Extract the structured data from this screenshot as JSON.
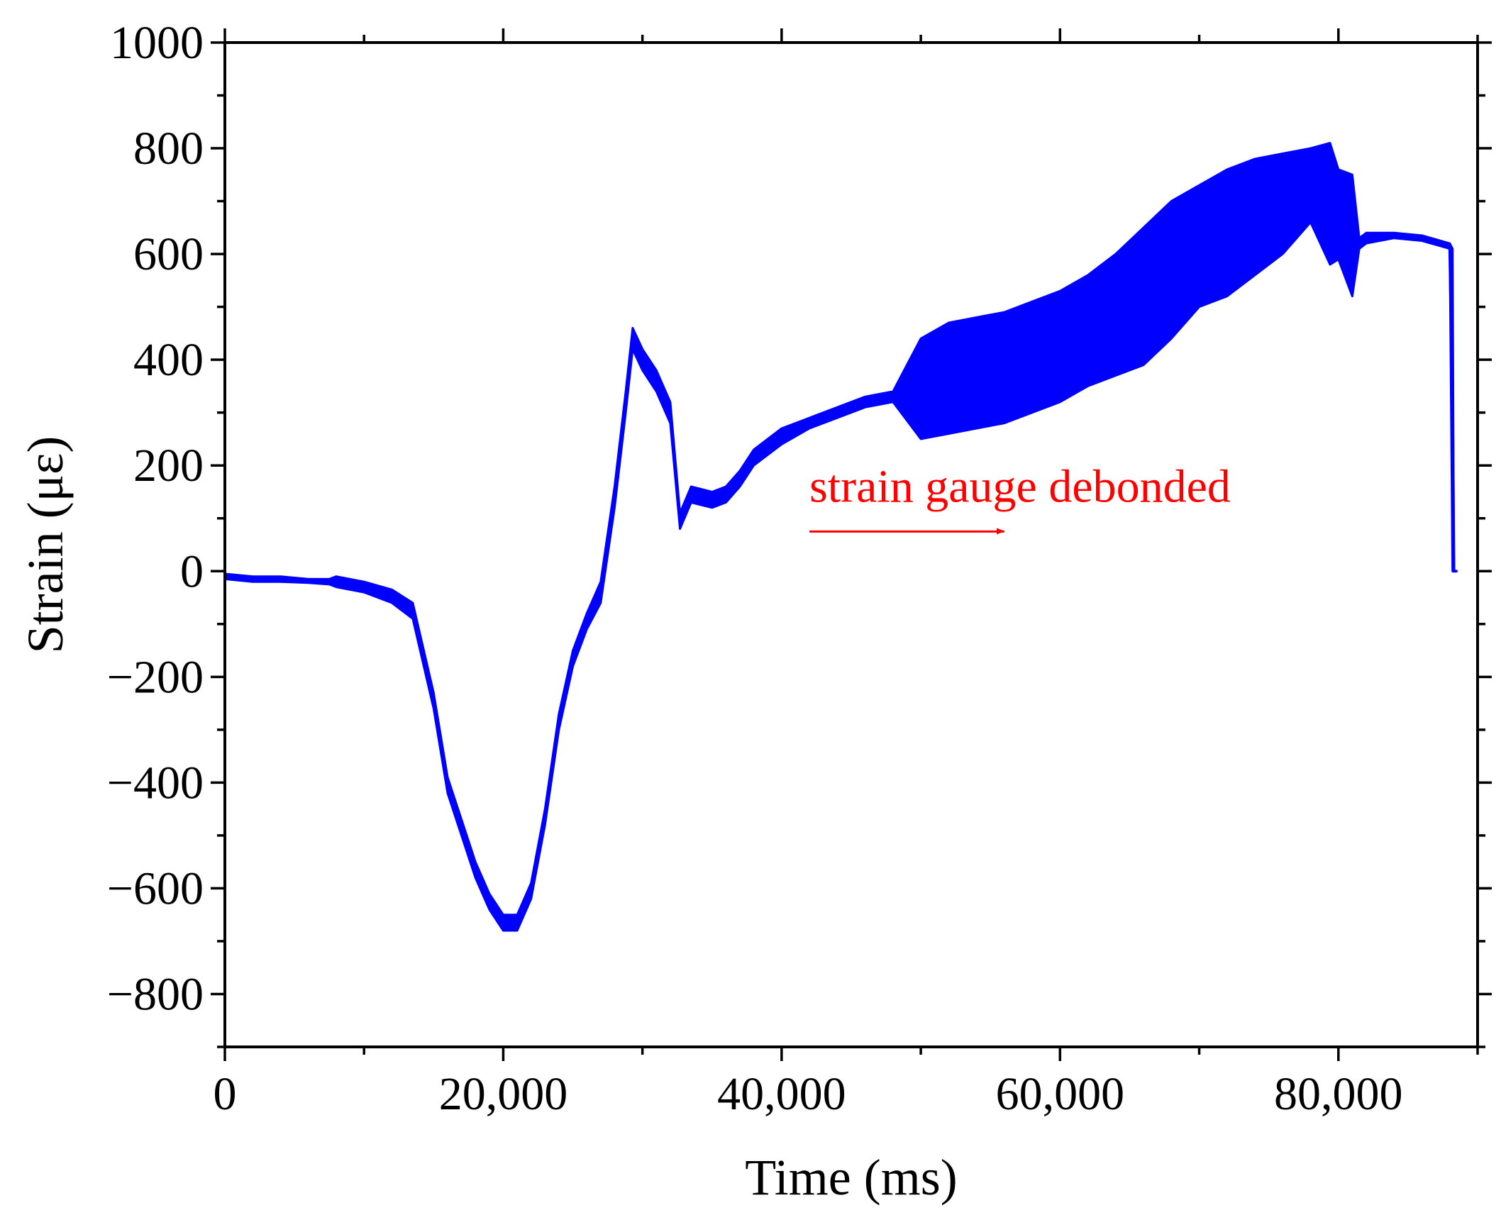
{
  "chart_data": {
    "type": "line",
    "title": "",
    "xlabel": "Time (ms)",
    "ylabel": "Strain (με)",
    "xlim": [
      0,
      90000
    ],
    "ylim": [
      -900,
      1000
    ],
    "x_ticks": [
      0,
      20000,
      40000,
      60000,
      80000
    ],
    "x_tick_labels": [
      "0",
      "20,000",
      "40,000",
      "60,000",
      "80,000"
    ],
    "y_ticks": [
      -800,
      -600,
      -400,
      -200,
      0,
      200,
      400,
      600,
      800,
      1000
    ],
    "y_tick_labels": [
      "−800",
      "−600",
      "−400",
      "−200",
      "0",
      "200",
      "400",
      "600",
      "800",
      "1000"
    ],
    "grid": false,
    "legend": "none",
    "series_color": "#0000ff",
    "annotation_color": "#ff0000",
    "annotation": {
      "text": "strain gauge debonded",
      "arrow_from": [
        42000,
        75
      ],
      "arrow_to": [
        56000,
        75
      ]
    },
    "series": [
      {
        "x": [
          0,
          2000,
          4000,
          6000,
          7500,
          8000,
          10000,
          12000,
          13500,
          15000,
          16000,
          17000,
          18000,
          19000,
          20000,
          21000,
          22000,
          23000,
          24000,
          25000,
          26000,
          27000,
          28000,
          28800,
          29300,
          30000,
          31000,
          32000,
          32700,
          33500,
          35000,
          36000,
          37000,
          38000,
          40000,
          42000,
          44000,
          46000,
          48000,
          50000,
          52000,
          54000,
          56000,
          58000,
          60000,
          62000,
          64000,
          66000,
          68000,
          70000,
          72000,
          74000,
          76000,
          78000,
          79400,
          80000,
          81000,
          81500,
          82000,
          84000,
          86000,
          88000,
          88200,
          88300,
          88500
        ],
        "y_lower": [
          -15,
          -20,
          -20,
          -22,
          -25,
          -30,
          -40,
          -60,
          -90,
          -260,
          -420,
          -500,
          -580,
          -640,
          -680,
          -680,
          -620,
          -480,
          -300,
          -180,
          -110,
          -60,
          120,
          300,
          420,
          380,
          340,
          280,
          80,
          130,
          120,
          130,
          160,
          200,
          240,
          270,
          290,
          310,
          320,
          250,
          260,
          270,
          280,
          300,
          320,
          350,
          370,
          390,
          440,
          500,
          520,
          560,
          600,
          660,
          580,
          590,
          520,
          610,
          620,
          630,
          625,
          610,
          0,
          0,
          0
        ],
        "y_upper": [
          -5,
          -10,
          -10,
          -15,
          -15,
          -10,
          -20,
          -35,
          -60,
          -230,
          -390,
          -470,
          -550,
          -610,
          -650,
          -650,
          -590,
          -450,
          -270,
          -150,
          -80,
          -20,
          160,
          340,
          460,
          420,
          380,
          320,
          110,
          160,
          150,
          160,
          190,
          230,
          270,
          290,
          310,
          330,
          340,
          440,
          470,
          480,
          490,
          510,
          530,
          560,
          600,
          650,
          700,
          730,
          760,
          780,
          790,
          800,
          810,
          760,
          750,
          630,
          640,
          640,
          635,
          620,
          610,
          0,
          0
        ]
      }
    ]
  }
}
